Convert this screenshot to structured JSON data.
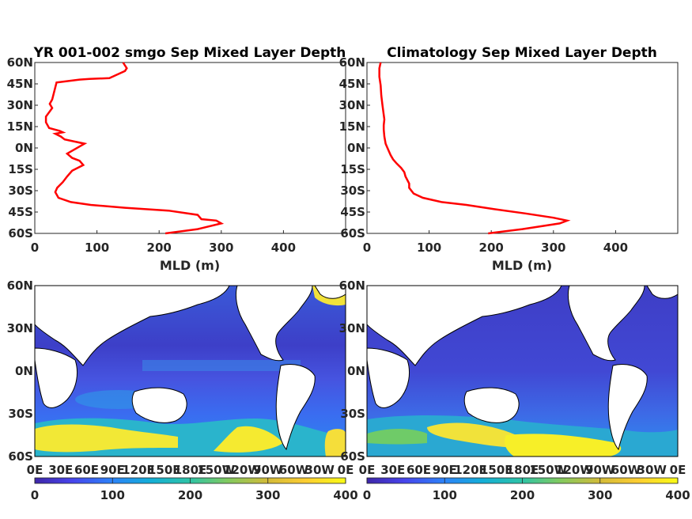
{
  "chart_data": [
    {
      "type": "line",
      "title": "YR 001-002 smgo Sep Mixed Layer Depth",
      "xlabel": "MLD (m)",
      "ylabel": "",
      "xlim": [
        0,
        500
      ],
      "ylim": [
        -60,
        60
      ],
      "x_ticks": [
        "0",
        "100",
        "200",
        "300",
        "400"
      ],
      "y_ticks": [
        "60S",
        "45S",
        "30S",
        "15S",
        "0N",
        "15N",
        "30N",
        "45N",
        "60N"
      ],
      "color": "#ff0000",
      "series": [
        {
          "x": [
            210,
            262,
            300,
            292,
            268,
            262,
            215,
            145,
            90,
            58,
            38,
            33,
            36,
            45,
            52,
            60,
            78,
            72,
            60,
            52,
            80,
            48,
            42,
            33,
            45,
            40,
            23,
            18,
            18,
            28,
            24,
            28,
            35,
            72,
            88,
            120,
            135,
            145,
            148,
            142
          ],
          "y": [
            -60,
            -57,
            -53,
            -51,
            -50,
            -47,
            -44,
            -42,
            -40,
            -38,
            -35,
            -31,
            -28,
            -24,
            -20,
            -16,
            -12,
            -9,
            -7,
            -4,
            3,
            6,
            8,
            10,
            11,
            12,
            14,
            18,
            22,
            28,
            31,
            34,
            46,
            48,
            48.5,
            49,
            52,
            54,
            56,
            60
          ]
        }
      ]
    },
    {
      "type": "line",
      "title": "Climatology Sep Mixed Layer Depth",
      "xlabel": "MLD (m)",
      "ylabel": "",
      "xlim": [
        0,
        500
      ],
      "ylim": [
        -60,
        60
      ],
      "x_ticks": [
        "0",
        "100",
        "200",
        "300",
        "400"
      ],
      "y_ticks": [
        "60S",
        "45S",
        "30S",
        "15S",
        "0N",
        "15N",
        "30N",
        "45N",
        "60N"
      ],
      "color": "#ff0000",
      "series": [
        {
          "x": [
            195,
            250,
            310,
            322,
            300,
            255,
            205,
            160,
            120,
            90,
            75,
            68,
            68,
            62,
            60,
            55,
            48,
            42,
            38,
            35,
            30,
            28,
            27,
            27,
            28,
            25,
            23,
            22,
            20,
            20,
            22
          ],
          "y": [
            -60,
            -57,
            -53,
            -51,
            -49,
            -46,
            -43,
            -40,
            -38,
            -35,
            -32,
            -28,
            -25,
            -20,
            -17,
            -14,
            -11,
            -8,
            -5,
            -2,
            3,
            8,
            13,
            16,
            20,
            30,
            37,
            44,
            50,
            56,
            60
          ]
        }
      ]
    },
    {
      "type": "heatmap",
      "title": "",
      "description_units": "MLD (m)",
      "x_ticks": [
        "0E",
        "30E",
        "60E",
        "90E",
        "120E",
        "150E",
        "180E",
        "150W",
        "120W",
        "90W",
        "60W",
        "30W",
        "0E"
      ],
      "y_ticks": [
        "60S",
        "30S",
        "0N",
        "30N",
        "60N"
      ],
      "colorbar_ticks": [
        "0",
        "100",
        "200",
        "300",
        "400"
      ],
      "clim": [
        0,
        400
      ],
      "colormap": [
        "#3e26a8",
        "#4744ec",
        "#2c83f9",
        "#13aed8",
        "#2fc4a5",
        "#81ca60",
        "#d3bb39",
        "#fccd32",
        "#f9fb15"
      ]
    },
    {
      "type": "heatmap",
      "title": "",
      "description_units": "MLD (m)",
      "x_ticks": [
        "0E",
        "30E",
        "60E",
        "90E",
        "120E",
        "150E",
        "180E",
        "150W",
        "120W",
        "90W",
        "60W",
        "30W",
        "0E"
      ],
      "y_ticks": [
        "60S",
        "30S",
        "0N",
        "30N",
        "60N"
      ],
      "colorbar_ticks": [
        "0",
        "100",
        "200",
        "300",
        "400"
      ],
      "clim": [
        0,
        400
      ],
      "colormap": [
        "#3e26a8",
        "#4744ec",
        "#2c83f9",
        "#13aed8",
        "#2fc4a5",
        "#81ca60",
        "#d3bb39",
        "#fccd32",
        "#f9fb15"
      ]
    }
  ]
}
